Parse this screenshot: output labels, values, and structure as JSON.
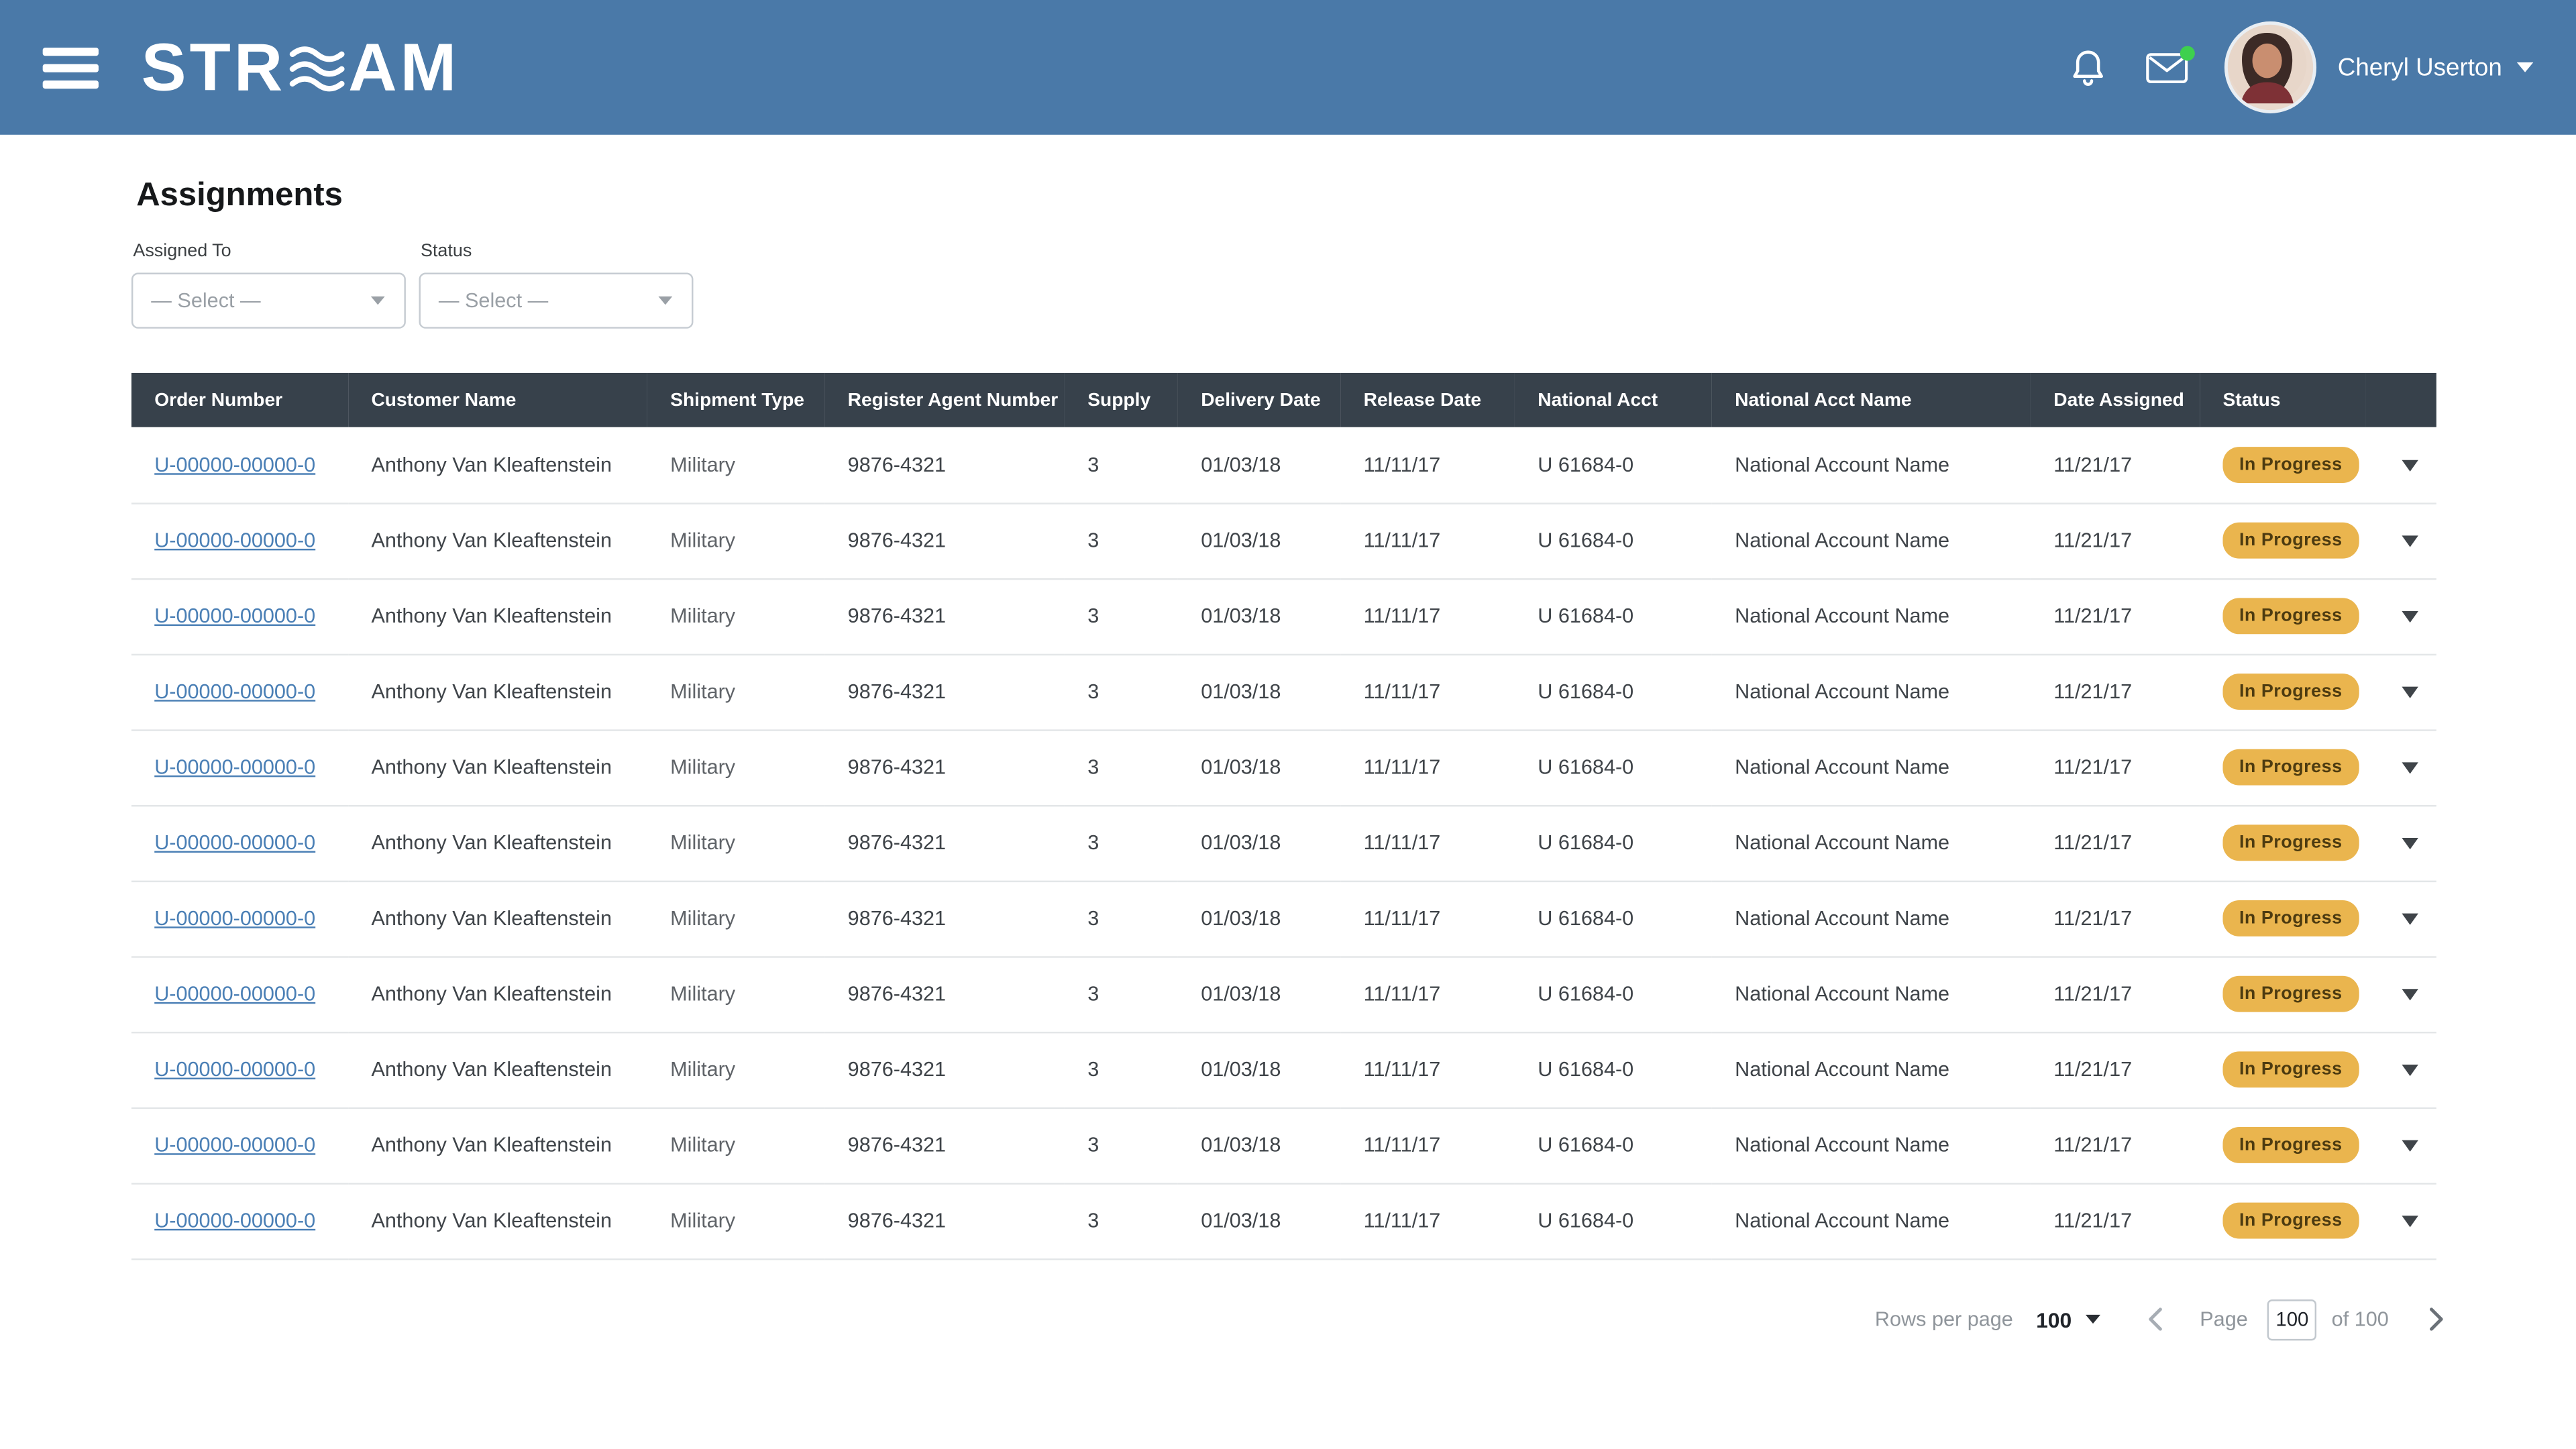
{
  "colors": {
    "brand_bar": "#4a79a8",
    "table_header_bg": "#37414b",
    "link": "#4a7fb5",
    "badge_bg": "#eab54e",
    "badge_text": "#4d3b10",
    "unread_dot": "#3ed04e"
  },
  "header": {
    "logo_prefix": "STR",
    "logo_suffix": "AM",
    "logo_alt": "STREAM",
    "user_name": "Cheryl Userton"
  },
  "page": {
    "title": "Assignments"
  },
  "filters": {
    "assigned_to_label": "Assigned To",
    "assigned_to_value": "— Select —",
    "status_label": "Status",
    "status_value": "— Select —"
  },
  "table": {
    "columns": [
      "Order Number",
      "Customer Name",
      "Shipment Type",
      "Register Agent Number",
      "Supply",
      "Delivery Date",
      "Release Date",
      "National Acct",
      "National Acct Name",
      "Date Assigned",
      "Status"
    ],
    "column_keys": [
      "order_number",
      "customer_name",
      "shipment_type",
      "register_agent_number",
      "supply",
      "delivery_date",
      "release_date",
      "national_acct",
      "national_acct_name",
      "date_assigned",
      "status"
    ],
    "rows": [
      {
        "order_number": "U-00000-00000-0",
        "customer_name": "Anthony Van Kleaftenstein",
        "shipment_type": "Military",
        "register_agent_number": "9876-4321",
        "supply": "3",
        "delivery_date": "01/03/18",
        "release_date": "11/11/17",
        "national_acct": "U 61684-0",
        "national_acct_name": "National Account Name",
        "date_assigned": "11/21/17",
        "status": "In Progress"
      },
      {
        "order_number": "U-00000-00000-0",
        "customer_name": "Anthony Van Kleaftenstein",
        "shipment_type": "Military",
        "register_agent_number": "9876-4321",
        "supply": "3",
        "delivery_date": "01/03/18",
        "release_date": "11/11/17",
        "national_acct": "U 61684-0",
        "national_acct_name": "National Account Name",
        "date_assigned": "11/21/17",
        "status": "In Progress"
      },
      {
        "order_number": "U-00000-00000-0",
        "customer_name": "Anthony Van Kleaftenstein",
        "shipment_type": "Military",
        "register_agent_number": "9876-4321",
        "supply": "3",
        "delivery_date": "01/03/18",
        "release_date": "11/11/17",
        "national_acct": "U 61684-0",
        "national_acct_name": "National Account Name",
        "date_assigned": "11/21/17",
        "status": "In Progress"
      },
      {
        "order_number": "U-00000-00000-0",
        "customer_name": "Anthony Van Kleaftenstein",
        "shipment_type": "Military",
        "register_agent_number": "9876-4321",
        "supply": "3",
        "delivery_date": "01/03/18",
        "release_date": "11/11/17",
        "national_acct": "U 61684-0",
        "national_acct_name": "National Account Name",
        "date_assigned": "11/21/17",
        "status": "In Progress"
      },
      {
        "order_number": "U-00000-00000-0",
        "customer_name": "Anthony Van Kleaftenstein",
        "shipment_type": "Military",
        "register_agent_number": "9876-4321",
        "supply": "3",
        "delivery_date": "01/03/18",
        "release_date": "11/11/17",
        "national_acct": "U 61684-0",
        "national_acct_name": "National Account Name",
        "date_assigned": "11/21/17",
        "status": "In Progress"
      },
      {
        "order_number": "U-00000-00000-0",
        "customer_name": "Anthony Van Kleaftenstein",
        "shipment_type": "Military",
        "register_agent_number": "9876-4321",
        "supply": "3",
        "delivery_date": "01/03/18",
        "release_date": "11/11/17",
        "national_acct": "U 61684-0",
        "national_acct_name": "National Account Name",
        "date_assigned": "11/21/17",
        "status": "In Progress"
      },
      {
        "order_number": "U-00000-00000-0",
        "customer_name": "Anthony Van Kleaftenstein",
        "shipment_type": "Military",
        "register_agent_number": "9876-4321",
        "supply": "3",
        "delivery_date": "01/03/18",
        "release_date": "11/11/17",
        "national_acct": "U 61684-0",
        "national_acct_name": "National Account Name",
        "date_assigned": "11/21/17",
        "status": "In Progress"
      },
      {
        "order_number": "U-00000-00000-0",
        "customer_name": "Anthony Van Kleaftenstein",
        "shipment_type": "Military",
        "register_agent_number": "9876-4321",
        "supply": "3",
        "delivery_date": "01/03/18",
        "release_date": "11/11/17",
        "national_acct": "U 61684-0",
        "national_acct_name": "National Account Name",
        "date_assigned": "11/21/17",
        "status": "In Progress"
      },
      {
        "order_number": "U-00000-00000-0",
        "customer_name": "Anthony Van Kleaftenstein",
        "shipment_type": "Military",
        "register_agent_number": "9876-4321",
        "supply": "3",
        "delivery_date": "01/03/18",
        "release_date": "11/11/17",
        "national_acct": "U 61684-0",
        "national_acct_name": "National Account Name",
        "date_assigned": "11/21/17",
        "status": "In Progress"
      },
      {
        "order_number": "U-00000-00000-0",
        "customer_name": "Anthony Van Kleaftenstein",
        "shipment_type": "Military",
        "register_agent_number": "9876-4321",
        "supply": "3",
        "delivery_date": "01/03/18",
        "release_date": "11/11/17",
        "national_acct": "U 61684-0",
        "national_acct_name": "National Account Name",
        "date_assigned": "11/21/17",
        "status": "In Progress"
      },
      {
        "order_number": "U-00000-00000-0",
        "customer_name": "Anthony Van Kleaftenstein",
        "shipment_type": "Military",
        "register_agent_number": "9876-4321",
        "supply": "3",
        "delivery_date": "01/03/18",
        "release_date": "11/11/17",
        "national_acct": "U 61684-0",
        "national_acct_name": "National Account Name",
        "date_assigned": "11/21/17",
        "status": "In Progress"
      }
    ]
  },
  "pagination": {
    "rows_per_page_label": "Rows per page",
    "rows_per_page_value": "100",
    "page_label": "Page",
    "page_value": "100",
    "of_text": "of 100"
  }
}
